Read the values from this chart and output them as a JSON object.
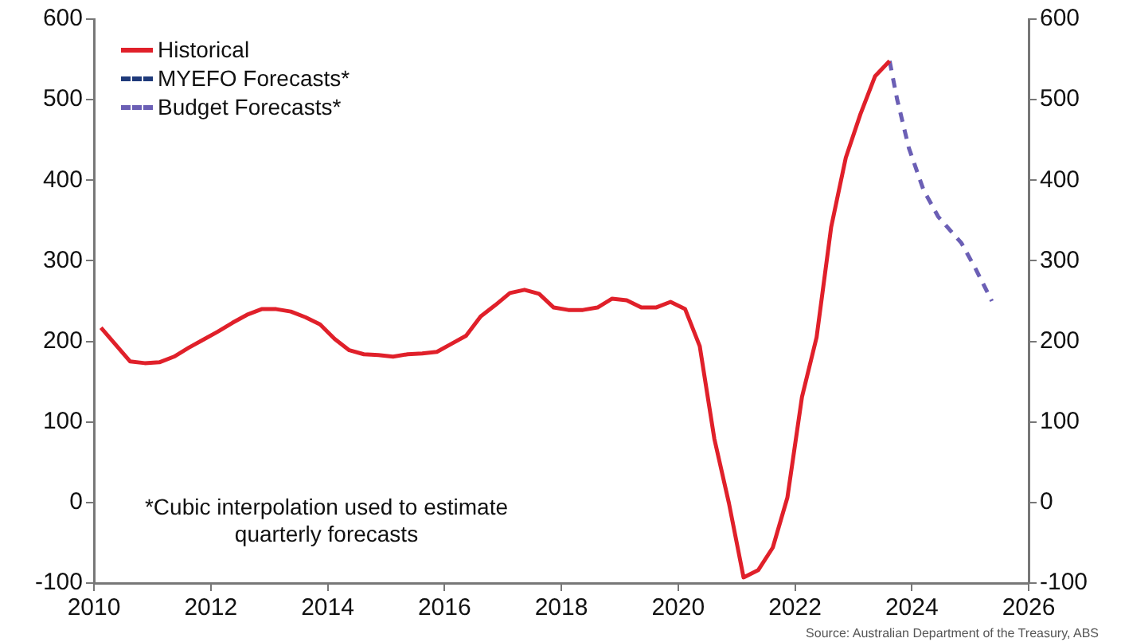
{
  "chart_data": {
    "type": "line",
    "xlim": [
      2010,
      2026
    ],
    "xticks": [
      2010,
      2012,
      2014,
      2016,
      2018,
      2020,
      2022,
      2024,
      2026
    ],
    "ylim": [
      -100,
      600
    ],
    "yticks": [
      -100,
      0,
      100,
      200,
      300,
      400,
      500,
      600
    ],
    "y2lim": [
      -100,
      600
    ],
    "y2ticks": [
      -100,
      0,
      100,
      200,
      300,
      400,
      500,
      600
    ],
    "grid": false,
    "legend": "top left",
    "marker": "none",
    "series": [
      {
        "name": "Historical",
        "color": "#e0202a",
        "line_style": "solid",
        "x": [
          2010.12,
          2010.37,
          2010.62,
          2010.87,
          2011.12,
          2011.37,
          2011.62,
          2011.87,
          2012.12,
          2012.37,
          2012.62,
          2012.87,
          2013.12,
          2013.37,
          2013.62,
          2013.87,
          2014.12,
          2014.37,
          2014.62,
          2014.87,
          2015.12,
          2015.37,
          2015.62,
          2015.87,
          2016.12,
          2016.37,
          2016.62,
          2016.87,
          2017.12,
          2017.37,
          2017.62,
          2017.87,
          2018.12,
          2018.37,
          2018.62,
          2018.87,
          2019.12,
          2019.37,
          2019.62,
          2019.87,
          2020.12,
          2020.37,
          2020.62,
          2020.87,
          2021.12,
          2021.37,
          2021.62,
          2021.87,
          2022.12,
          2022.37,
          2022.62,
          2022.87,
          2023.12,
          2023.37,
          2023.62
        ],
        "values": [
          217,
          196,
          175,
          173,
          174,
          181,
          192,
          202,
          212,
          223,
          233,
          240,
          240,
          237,
          230,
          221,
          203,
          189,
          184,
          183,
          181,
          184,
          185,
          187,
          197,
          207,
          231,
          245,
          260,
          264,
          259,
          242,
          239,
          239,
          242,
          253,
          251,
          242,
          242,
          249,
          240,
          194,
          79,
          -1,
          -93,
          -84,
          -56,
          6,
          131,
          205,
          342,
          428,
          482,
          529,
          548
        ]
      },
      {
        "name": "MYEFO Forecasts*",
        "color": "#1f3a7a",
        "line_style": "dashed"
      },
      {
        "name": "Budget Forecasts*",
        "color": "#6b5fb5",
        "line_style": "dashed",
        "x": [
          2023.62,
          2023.75,
          2023.95,
          2024.2,
          2024.45,
          2024.85,
          2025.1,
          2025.37
        ],
        "values": [
          548,
          500,
          440,
          388,
          355,
          322,
          289,
          250
        ]
      }
    ],
    "annotations": [
      "*Cubic interpolation used to estimate quarterly forecasts",
      "Source: Australian Department of the Treasury, ABS"
    ]
  }
}
